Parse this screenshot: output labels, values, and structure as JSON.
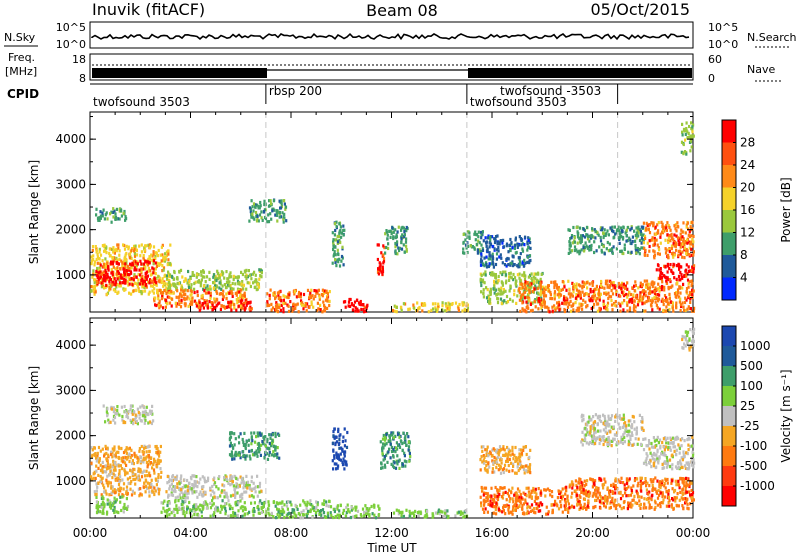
{
  "header": {
    "station": "Inuvik (fitACF)",
    "beam": "Beam 08",
    "date": "05/Oct/2015"
  },
  "top_panel": {
    "left_label": "N.Sky",
    "right_label": "N.Search",
    "left_ticks": [
      "10^5",
      "10^0"
    ],
    "right_ticks": [
      "10^5",
      "10^0"
    ]
  },
  "freq_panel": {
    "left_label_1": "Freq.",
    "left_label_2": "[MHz]",
    "right_label": "Nave",
    "left_ticks": [
      "18",
      "8"
    ],
    "right_ticks": [
      "60",
      "0"
    ]
  },
  "cpid": {
    "label": "CPID",
    "programs": [
      {
        "name": "twofsound 3503",
        "start_hour": 0,
        "row": 1
      },
      {
        "name": "rbsp 200",
        "start_hour": 7,
        "row": 0
      },
      {
        "name": "twofsound -3503",
        "start_hour": 15,
        "row": 0,
        "text_hour": 16.2
      },
      {
        "name": "twofsound 3503",
        "start_hour": 15,
        "row": 1
      }
    ],
    "boundaries": [
      7,
      15,
      21
    ]
  },
  "chart_data": [
    {
      "type": "heatmap",
      "name": "power",
      "ylabel": "Slant Range [km]",
      "yticks": [
        1000,
        2000,
        3000,
        4000
      ],
      "ylim": [
        180,
        4600
      ],
      "xlim": [
        0,
        24
      ],
      "colorbar": {
        "label": "Power [dB]",
        "ticks": [
          "28",
          "24",
          "20",
          "16",
          "12",
          "8",
          "4"
        ],
        "colors": [
          "#ff0000",
          "#ff7a10",
          "#f5d22a",
          "#9ac83c",
          "#3e9e6a",
          "#1f5a9a",
          "#0028ff"
        ]
      },
      "blobs": [
        {
          "t0": 0.0,
          "t1": 3.2,
          "r0": 600,
          "r1": 1700,
          "c": 2
        },
        {
          "t0": 0.2,
          "t1": 2.6,
          "r0": 800,
          "r1": 1350,
          "c": 0
        },
        {
          "t0": 0.2,
          "t1": 1.4,
          "r0": 2200,
          "r1": 2500,
          "c": 4
        },
        {
          "t0": 3.0,
          "t1": 6.8,
          "r0": 700,
          "r1": 1150,
          "c": 3
        },
        {
          "t0": 2.5,
          "t1": 6.2,
          "r0": 300,
          "r1": 700,
          "c": 1
        },
        {
          "t0": 4.2,
          "t1": 6.4,
          "r0": 250,
          "r1": 450,
          "c": 0
        },
        {
          "t0": 6.3,
          "t1": 7.8,
          "r0": 2200,
          "r1": 2700,
          "c": 4
        },
        {
          "t0": 7.0,
          "t1": 9.5,
          "r0": 220,
          "r1": 700,
          "c": 1
        },
        {
          "t0": 9.6,
          "t1": 10.1,
          "r0": 1200,
          "r1": 2200,
          "c": 4
        },
        {
          "t0": 10.0,
          "t1": 11.0,
          "r0": 220,
          "r1": 500,
          "c": 0
        },
        {
          "t0": 11.4,
          "t1": 11.7,
          "r0": 1000,
          "r1": 1700,
          "c": 0
        },
        {
          "t0": 11.7,
          "t1": 12.6,
          "r0": 1500,
          "r1": 2100,
          "c": 4
        },
        {
          "t0": 12.0,
          "t1": 15.0,
          "r0": 220,
          "r1": 420,
          "c": 2
        },
        {
          "t0": 14.8,
          "t1": 15.6,
          "r0": 1500,
          "r1": 2000,
          "c": 4
        },
        {
          "t0": 15.5,
          "t1": 18.0,
          "r0": 400,
          "r1": 1100,
          "c": 3
        },
        {
          "t0": 15.5,
          "t1": 17.5,
          "r0": 1200,
          "r1": 1900,
          "c": 5
        },
        {
          "t0": 17.0,
          "t1": 24.0,
          "r0": 220,
          "r1": 900,
          "c": 1
        },
        {
          "t0": 19.0,
          "t1": 22.0,
          "r0": 1500,
          "r1": 2100,
          "c": 4
        },
        {
          "t0": 22.0,
          "t1": 24.0,
          "r0": 1400,
          "r1": 2200,
          "c": 1
        },
        {
          "t0": 22.5,
          "t1": 24.0,
          "r0": 900,
          "r1": 1300,
          "c": 0
        },
        {
          "t0": 23.5,
          "t1": 24.0,
          "r0": 3700,
          "r1": 4400,
          "c": 3
        }
      ]
    },
    {
      "type": "heatmap",
      "name": "velocity",
      "ylabel": "Slant Range [km]",
      "yticks": [
        1000,
        2000,
        3000,
        4000
      ],
      "ylim": [
        180,
        4600
      ],
      "xlim": [
        0,
        24
      ],
      "xticks": [
        "00:00",
        "04:00",
        "08:00",
        "12:00",
        "16:00",
        "20:00",
        "00:00"
      ],
      "xlabel": "Time UT",
      "colorbar": {
        "label": "Velocity [m s⁻¹]",
        "ticks": [
          "1000",
          "500",
          "100",
          "25",
          "-25",
          "-100",
          "-500",
          "-1000"
        ],
        "colors": [
          "#1c48b0",
          "#1f5a9a",
          "#3e9e6a",
          "#7ccf3a",
          "#c0c0c0",
          "#f5a623",
          "#ff7a10",
          "#ff0000"
        ]
      },
      "blobs": [
        {
          "t0": 0.0,
          "t1": 2.8,
          "r0": 700,
          "r1": 1800,
          "c": 5
        },
        {
          "t0": 0.2,
          "t1": 1.5,
          "r0": 300,
          "r1": 700,
          "c": 3
        },
        {
          "t0": 3.0,
          "t1": 6.8,
          "r0": 650,
          "r1": 1150,
          "c": 4
        },
        {
          "t0": 2.8,
          "t1": 7.0,
          "r0": 250,
          "r1": 600,
          "c": 3
        },
        {
          "t0": 5.5,
          "t1": 7.5,
          "r0": 1500,
          "r1": 2100,
          "c": 2
        },
        {
          "t0": 0.5,
          "t1": 2.5,
          "r0": 2300,
          "r1": 2700,
          "c": 4
        },
        {
          "t0": 7.0,
          "t1": 9.5,
          "r0": 220,
          "r1": 600,
          "c": 3
        },
        {
          "t0": 9.6,
          "t1": 10.2,
          "r0": 1300,
          "r1": 2200,
          "c": 0
        },
        {
          "t0": 9.5,
          "t1": 11.5,
          "r0": 220,
          "r1": 500,
          "c": 3
        },
        {
          "t0": 11.5,
          "t1": 12.7,
          "r0": 1300,
          "r1": 2100,
          "c": 2
        },
        {
          "t0": 12.0,
          "t1": 15.0,
          "r0": 220,
          "r1": 400,
          "c": 3
        },
        {
          "t0": 15.5,
          "t1": 19.0,
          "r0": 300,
          "r1": 900,
          "c": 6
        },
        {
          "t0": 15.5,
          "t1": 17.5,
          "r0": 1200,
          "r1": 1800,
          "c": 5
        },
        {
          "t0": 19.0,
          "t1": 24.0,
          "r0": 400,
          "r1": 1100,
          "c": 6
        },
        {
          "t0": 19.5,
          "t1": 22.0,
          "r0": 1800,
          "r1": 2500,
          "c": 4
        },
        {
          "t0": 22.0,
          "t1": 24.0,
          "r0": 1300,
          "r1": 2000,
          "c": 4
        },
        {
          "t0": 23.5,
          "t1": 24.0,
          "r0": 3900,
          "r1": 4400,
          "c": 4
        }
      ]
    }
  ]
}
